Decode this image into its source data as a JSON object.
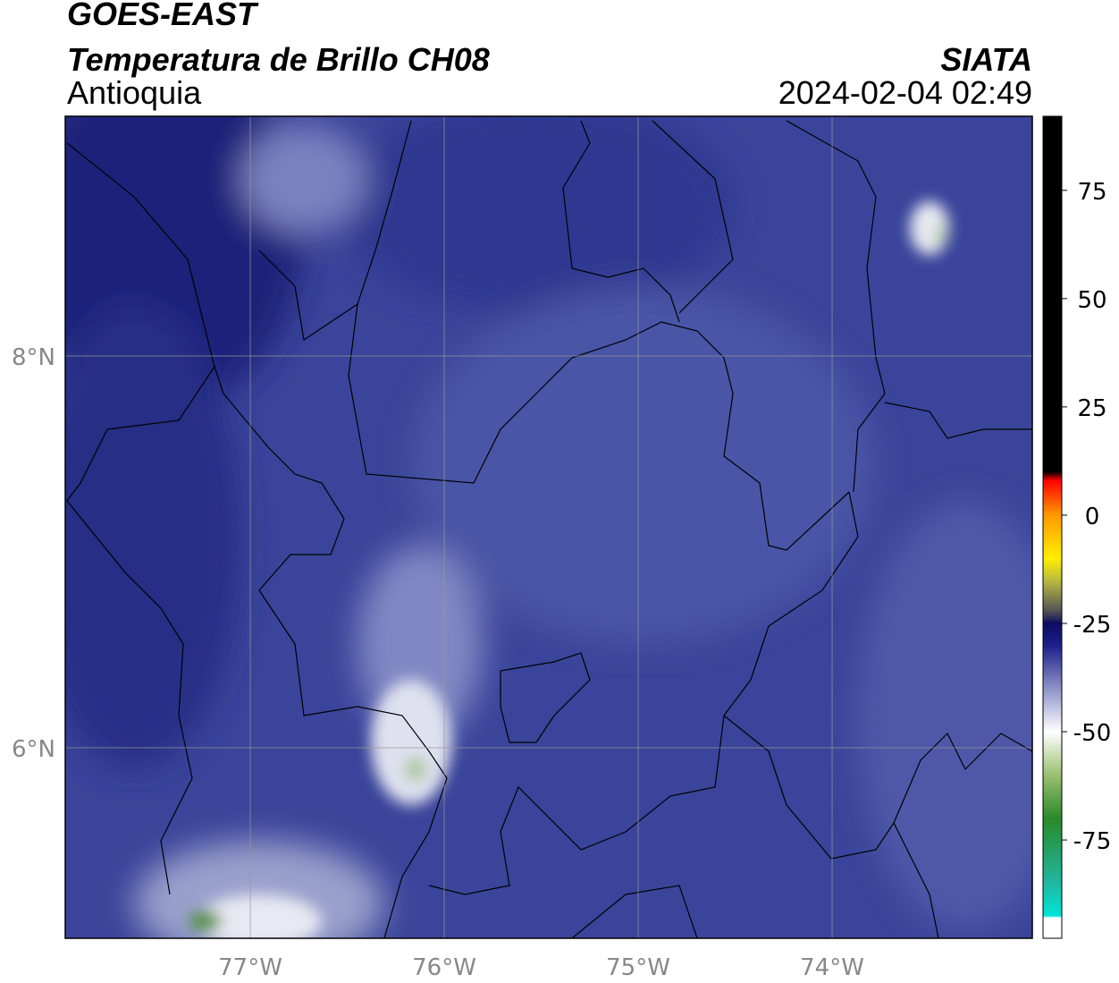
{
  "header": {
    "title": "GOES-EAST",
    "subtitle": "Temperatura de Brillo CH08",
    "region": "Antioquia",
    "source": "SIATA",
    "datetime": "2024-02-04 02:49"
  },
  "map": {
    "xlim": [
      -77.954,
      -72.968
    ],
    "ylim": [
      5.027,
      9.224
    ],
    "xticks": [
      {
        "value": -77,
        "label": "77°W"
      },
      {
        "value": -76,
        "label": "76°W"
      },
      {
        "value": -75,
        "label": "75°W"
      },
      {
        "value": -74,
        "label": "74°W"
      }
    ],
    "yticks": [
      {
        "value": 6,
        "label": "6°N"
      },
      {
        "value": 8,
        "label": "8°N"
      }
    ],
    "grid": true
  },
  "colorbar": {
    "lim": [
      -97.7,
      92.1
    ],
    "ticks": [
      -75,
      -50,
      -25,
      0,
      25,
      50,
      75
    ],
    "stops": [
      {
        "value": -97.7,
        "color": "#ffffff"
      },
      {
        "value": -93,
        "color": "#ffffff"
      },
      {
        "value": -92.5,
        "color": "#00e5d8"
      },
      {
        "value": -85,
        "color": "#20b8a0"
      },
      {
        "value": -70,
        "color": "#2a8a2a"
      },
      {
        "value": -60,
        "color": "#9ac070"
      },
      {
        "value": -50,
        "color": "#ffffff"
      },
      {
        "value": -40,
        "color": "#8c92c8"
      },
      {
        "value": -30,
        "color": "#1c1f8a"
      },
      {
        "value": -25,
        "color": "#0c0c60"
      },
      {
        "value": -22,
        "color": "#555555"
      },
      {
        "value": -15,
        "color": "#bbbb40"
      },
      {
        "value": -10,
        "color": "#ffee00"
      },
      {
        "value": 0,
        "color": "#ff9900"
      },
      {
        "value": 8,
        "color": "#ff0000"
      },
      {
        "value": 10,
        "color": "#000000"
      },
      {
        "value": 92.1,
        "color": "#000000"
      }
    ]
  }
}
